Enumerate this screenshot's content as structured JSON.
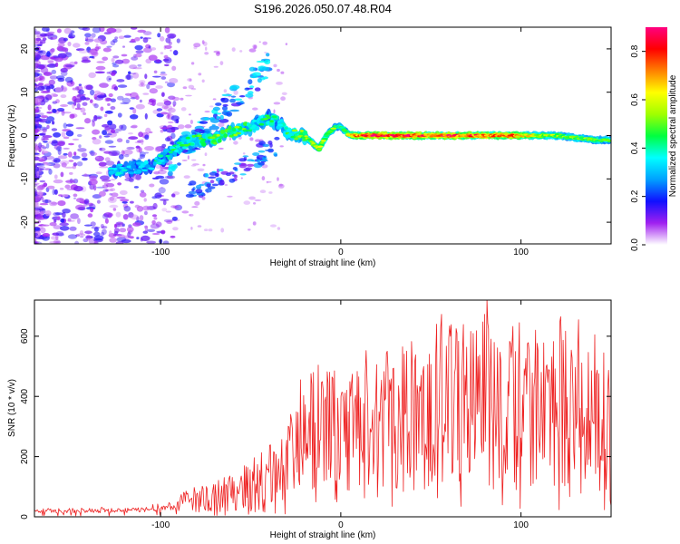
{
  "title": "S196.2026.050.07.48.R04",
  "chart_data": [
    {
      "type": "heatmap",
      "name": "spectrogram",
      "xlabel": "Height of straight line (km)",
      "ylabel": "Frequency (Hz)",
      "xlim": [
        -170,
        150
      ],
      "ylim": [
        -25,
        25
      ],
      "xticks": [
        -100,
        0,
        100
      ],
      "yticks": [
        -20,
        -10,
        0,
        10,
        20
      ],
      "colorbar": {
        "label": "Normalized spectral amplitude",
        "range": [
          0,
          0.9
        ],
        "ticks": [
          0.0,
          0.2,
          0.4,
          0.6,
          0.8
        ],
        "colors": [
          "#ffffff",
          "#a020f0",
          "#1010ff",
          "#00a0ff",
          "#00ffff",
          "#00ff40",
          "#a0ff00",
          "#ffff00",
          "#ff8000",
          "#ff0000",
          "#ff0080"
        ]
      },
      "ridge_frequency_hz": [
        [
          -125,
          -8
        ],
        [
          -105,
          -7
        ],
        [
          -95,
          -4
        ],
        [
          -88,
          -2
        ],
        [
          -80,
          -1
        ],
        [
          -70,
          -1
        ],
        [
          -60,
          1
        ],
        [
          -50,
          2
        ],
        [
          -40,
          4
        ],
        [
          -35,
          3
        ],
        [
          -30,
          1
        ],
        [
          -25,
          0
        ],
        [
          -20,
          0
        ],
        [
          -15,
          -2
        ],
        [
          -12,
          -3
        ],
        [
          -8,
          0
        ],
        [
          -3,
          2
        ],
        [
          0,
          2
        ],
        [
          5,
          0
        ],
        [
          20,
          0
        ],
        [
          50,
          0
        ],
        [
          80,
          0
        ],
        [
          100,
          0
        ],
        [
          120,
          0
        ],
        [
          140,
          -1
        ],
        [
          150,
          -1
        ]
      ],
      "ridge_peak_amplitude": [
        [
          -125,
          0.35
        ],
        [
          -105,
          0.4
        ],
        [
          -90,
          0.45
        ],
        [
          -75,
          0.5
        ],
        [
          -60,
          0.55
        ],
        [
          -40,
          0.45
        ],
        [
          -25,
          0.5
        ],
        [
          -15,
          0.6
        ],
        [
          -5,
          0.55
        ],
        [
          0,
          0.45
        ],
        [
          10,
          0.8
        ],
        [
          20,
          0.9
        ],
        [
          30,
          0.85
        ],
        [
          40,
          0.88
        ],
        [
          50,
          0.82
        ],
        [
          60,
          0.86
        ],
        [
          70,
          0.8
        ],
        [
          85,
          0.84
        ],
        [
          95,
          0.8
        ],
        [
          110,
          0.6
        ],
        [
          130,
          0.55
        ],
        [
          145,
          0.5
        ]
      ]
    },
    {
      "type": "line",
      "name": "snr",
      "xlabel": "Height of straight line (km)",
      "ylabel": "SNR (10 * v/v)",
      "xlim": [
        -170,
        150
      ],
      "ylim": [
        0,
        720
      ],
      "xticks": [
        -100,
        0,
        100
      ],
      "yticks": [
        0,
        200,
        400,
        600
      ],
      "color": "#ee2222",
      "series": [
        {
          "name": "SNR",
          "x": [
            -170,
            -160,
            -150,
            -140,
            -130,
            -120,
            -110,
            -100,
            -90,
            -85,
            -80,
            -75,
            -70,
            -65,
            -60,
            -55,
            -50,
            -45,
            -40,
            -35,
            -30,
            -25,
            -22,
            -20,
            -15,
            -10,
            -5,
            0,
            5,
            10,
            15,
            20,
            25,
            30,
            35,
            40,
            45,
            50,
            55,
            60,
            65,
            70,
            75,
            80,
            85,
            90,
            95,
            100,
            105,
            110,
            115,
            120,
            125,
            130,
            135,
            140,
            145,
            150
          ],
          "y": [
            18,
            20,
            17,
            22,
            19,
            21,
            24,
            28,
            40,
            55,
            65,
            60,
            70,
            75,
            80,
            95,
            110,
            125,
            135,
            150,
            185,
            210,
            270,
            250,
            285,
            300,
            290,
            250,
            280,
            320,
            330,
            300,
            345,
            300,
            370,
            360,
            340,
            350,
            380,
            420,
            340,
            390,
            370,
            400,
            380,
            350,
            360,
            395,
            370,
            380,
            330,
            410,
            350,
            340,
            330,
            360,
            310,
            340
          ]
        }
      ],
      "annotations": {
        "max": {
          "x": 81,
          "y": 720
        },
        "notable_peaks": [
          [
            -16,
            440
          ],
          [
            27,
            455
          ],
          [
            55,
            510
          ],
          [
            61,
            600
          ],
          [
            64,
            625
          ],
          [
            99,
            645
          ],
          [
            122,
            665
          ],
          [
            132,
            655
          ],
          [
            146,
            545
          ]
        ]
      }
    }
  ]
}
